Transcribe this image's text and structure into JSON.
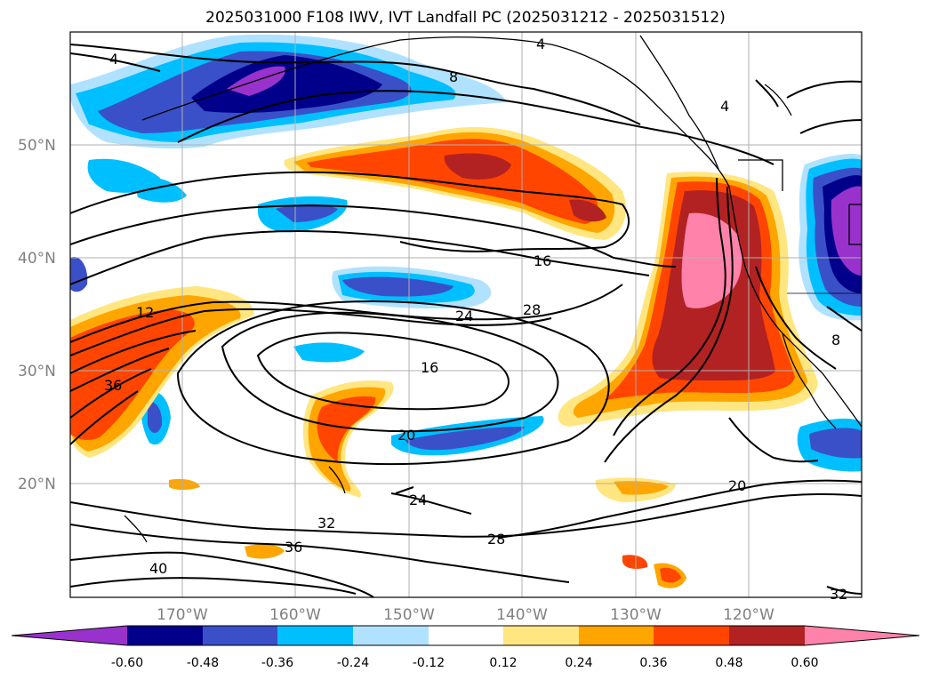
{
  "title": "2025031000 F108 IWV, IVT Landfall PC (2025031212 - 2025031512)",
  "lat_labels": [
    "50°N",
    "40°N",
    "30°N",
    "20°N"
  ],
  "lon_labels": [
    "170°W",
    "160°W",
    "150°W",
    "140°W",
    "130°W",
    "120°W"
  ],
  "contour_labels": [
    "4",
    "8",
    "12",
    "16",
    "20",
    "24",
    "28",
    "32",
    "36",
    "40"
  ],
  "colorbar": {
    "ticks": [
      "-0.60",
      "-0.48",
      "-0.36",
      "-0.24",
      "-0.12",
      "0.12",
      "0.24",
      "0.36",
      "0.48",
      "0.60"
    ],
    "colors": [
      "#9932cc",
      "#00008b",
      "#3a50c8",
      "#00bfff",
      "#b0e2ff",
      "#ffffff",
      "#ffe680",
      "#ffa500",
      "#ff4500",
      "#b22222",
      "#ff82ab"
    ]
  }
}
